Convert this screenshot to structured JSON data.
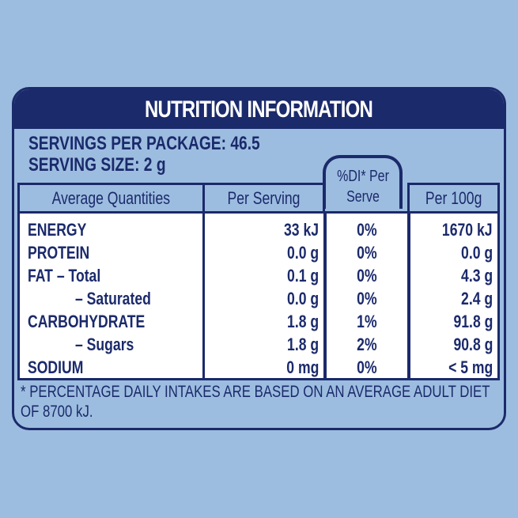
{
  "title": "NUTRITION INFORMATION",
  "servings": [
    "SERVINGS PER PACKAGE: 46.5",
    "SERVING SIZE: 2 g"
  ],
  "table": {
    "header": [
      "Average Quantities",
      "Per Serving",
      "%DI* Per Serve",
      "Per 100g"
    ],
    "rows": [
      [
        "ENERGY",
        "33 kJ",
        "0%",
        "1670 kJ"
      ],
      [
        "PROTEIN",
        "0.0 g",
        "0%",
        "0.0 g"
      ],
      [
        "FAT – Total",
        "0.1 g",
        "0%",
        "4.3 g"
      ],
      [
        "– Saturated",
        "0.0 g",
        "0%",
        "2.4 g"
      ],
      [
        "CARBOHYDRATE",
        "1.8 g",
        "1%",
        "91.8 g"
      ],
      [
        "– Sugars",
        "1.8 g",
        "2%",
        "90.8 g"
      ],
      [
        "SODIUM",
        "0 mg",
        "0%",
        "< 5 mg"
      ]
    ]
  },
  "footnote": "* PERCENTAGE DAILY INTAKES ARE BASED ON AN AVERAGE ADULT DIET OF 8700 kJ."
}
